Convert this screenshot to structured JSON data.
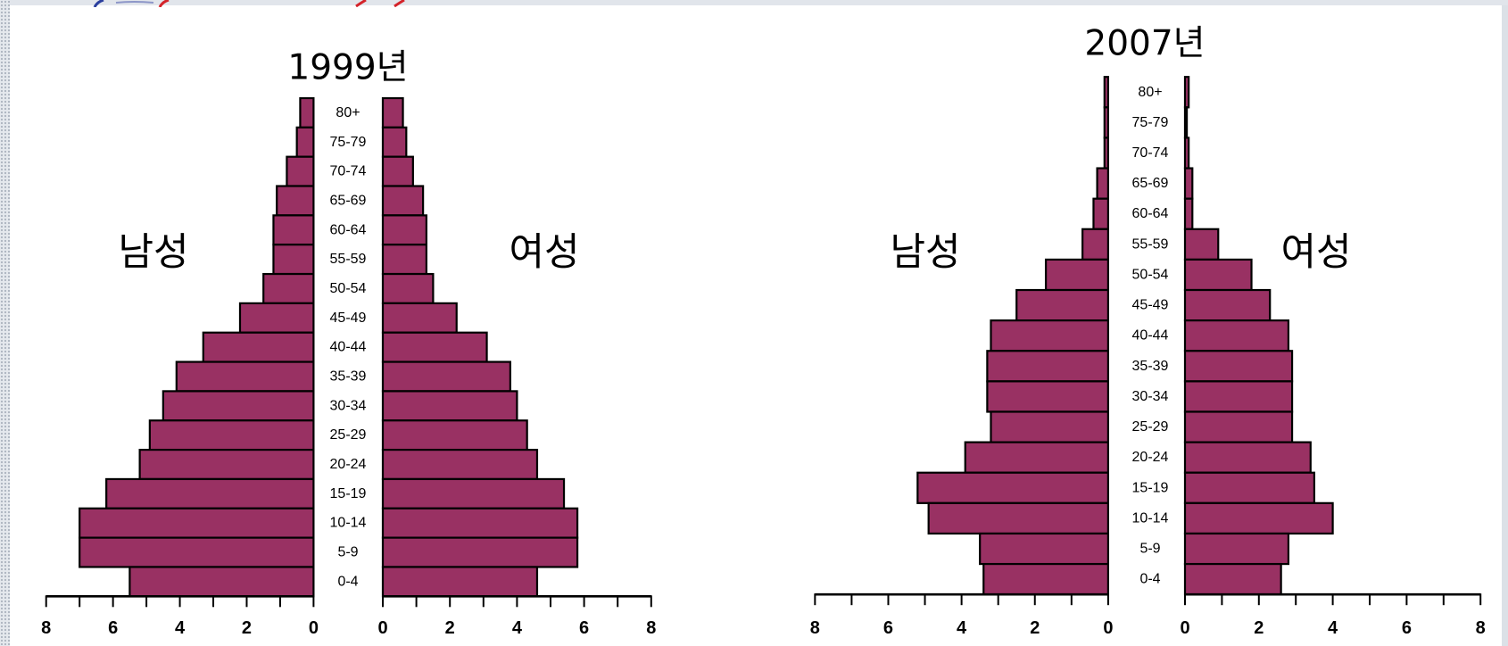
{
  "page": {
    "background_color": "#dce1e7",
    "panel_color": "#ffffff",
    "logo": {
      "icon": "logo-fragment-icon",
      "colors": [
        "#2b3f9e",
        "#8d96c8",
        "#d4232a"
      ]
    }
  },
  "chart_data": [
    {
      "type": "bar",
      "orientation": "horizontal",
      "mirrored": true,
      "title": "1999년",
      "categories": [
        "80+",
        "75-79",
        "70-74",
        "65-69",
        "60-64",
        "55-59",
        "50-54",
        "45-49",
        "40-44",
        "35-39",
        "30-34",
        "25-29",
        "20-24",
        "15-19",
        "10-14",
        "5-9",
        "0-4"
      ],
      "series": [
        {
          "name": "남성",
          "color": "#993163",
          "values": [
            0.4,
            0.5,
            0.8,
            1.1,
            1.2,
            1.2,
            1.5,
            2.2,
            3.3,
            4.1,
            4.5,
            4.9,
            5.2,
            6.2,
            7.0,
            7.0,
            5.5
          ]
        },
        {
          "name": "여성",
          "color": "#993163",
          "values": [
            0.6,
            0.7,
            0.9,
            1.2,
            1.3,
            1.3,
            1.5,
            2.2,
            3.1,
            3.8,
            4.0,
            4.3,
            4.6,
            5.4,
            5.8,
            5.8,
            4.6
          ]
        }
      ],
      "xlim": [
        0,
        8
      ],
      "male_tick_labels": [
        "8",
        "6",
        "4",
        "2",
        "0"
      ],
      "female_tick_labels": [
        "0",
        "2",
        "4",
        "6",
        "8"
      ],
      "grid": false,
      "legend": "none"
    },
    {
      "type": "bar",
      "orientation": "horizontal",
      "mirrored": true,
      "title": "2007년",
      "categories": [
        "80+",
        "75-79",
        "70-74",
        "65-69",
        "60-64",
        "55-59",
        "50-54",
        "45-49",
        "40-44",
        "35-39",
        "30-34",
        "25-29",
        "20-24",
        "15-19",
        "10-14",
        "5-9",
        "0-4"
      ],
      "series": [
        {
          "name": "남성",
          "color": "#993163",
          "values": [
            0.1,
            0.1,
            0.1,
            0.3,
            0.4,
            0.7,
            1.7,
            2.5,
            3.2,
            3.3,
            3.3,
            3.2,
            3.9,
            5.2,
            4.9,
            3.5,
            3.4
          ]
        },
        {
          "name": "여성",
          "color": "#993163",
          "values": [
            0.1,
            0.05,
            0.1,
            0.2,
            0.2,
            0.9,
            1.8,
            2.3,
            2.8,
            2.9,
            2.9,
            2.9,
            3.4,
            3.5,
            4.0,
            2.8,
            2.6
          ]
        }
      ],
      "xlim": [
        0,
        8
      ],
      "male_tick_labels": [
        "8",
        "6",
        "4",
        "2",
        "0"
      ],
      "female_tick_labels": [
        "0",
        "2",
        "4",
        "6",
        "8"
      ],
      "grid": false,
      "legend": "none"
    }
  ]
}
